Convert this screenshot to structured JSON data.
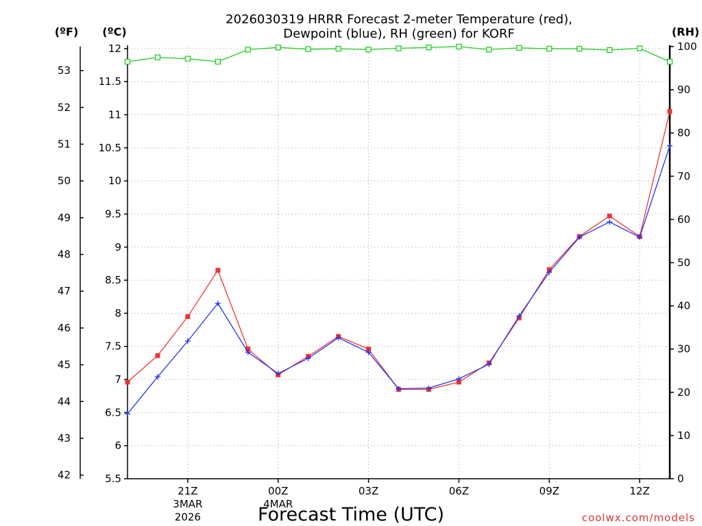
{
  "chart_data": {
    "type": "line",
    "title_line1": "2026030319 HRRR Forecast 2-meter Temperature (red),",
    "title_line2": "Dewpoint (blue), RH (green) for KORF",
    "xlabel": "Forecast Time (UTC)",
    "watermark": "coolwx.com/models",
    "axis_left_f": {
      "unit_label": "(ºF)",
      "ticks": [
        "42",
        "43",
        "44",
        "45",
        "46",
        "47",
        "48",
        "49",
        "50",
        "51",
        "52",
        "53"
      ],
      "values": [
        42,
        43,
        44,
        45,
        46,
        47,
        48,
        49,
        50,
        51,
        52,
        53
      ]
    },
    "axis_left_c": {
      "unit_label": "(ºC)",
      "ticks": [
        "5.5",
        "6",
        "6.5",
        "7",
        "7.5",
        "8",
        "8.5",
        "9",
        "9.5",
        "10",
        "10.5",
        "11",
        "11.5",
        "12"
      ],
      "values": [
        5.5,
        6,
        6.5,
        7,
        7.5,
        8,
        8.5,
        9,
        9.5,
        10,
        10.5,
        11,
        11.5,
        12
      ],
      "ylim": [
        5.5,
        12.03
      ]
    },
    "axis_right_rh": {
      "unit_label": "(RH)",
      "ticks": [
        "0",
        "10",
        "20",
        "30",
        "40",
        "50",
        "60",
        "70",
        "80",
        "90",
        "100"
      ],
      "values": [
        0,
        10,
        20,
        30,
        40,
        50,
        60,
        70,
        80,
        90,
        100
      ],
      "ylim": [
        0,
        100
      ]
    },
    "x_hours": [
      19,
      20,
      21,
      22,
      23,
      24,
      25,
      26,
      27,
      28,
      29,
      30,
      31,
      32,
      33,
      34,
      35,
      36,
      37
    ],
    "x_ticks": [
      {
        "hour": 21,
        "lines": [
          "21Z",
          "3MAR",
          "2026"
        ]
      },
      {
        "hour": 24,
        "lines": [
          "00Z",
          "4MAR"
        ]
      },
      {
        "hour": 27,
        "lines": [
          "03Z"
        ]
      },
      {
        "hour": 30,
        "lines": [
          "06Z"
        ]
      },
      {
        "hour": 33,
        "lines": [
          "09Z"
        ]
      },
      {
        "hour": 36,
        "lines": [
          "12Z"
        ]
      }
    ],
    "grid": true,
    "series": [
      {
        "key": "temperature",
        "color": "#ee3333",
        "marker": "square",
        "axis": "celsius",
        "values": [
          6.96,
          7.36,
          7.95,
          8.65,
          7.46,
          7.07,
          7.35,
          7.65,
          7.46,
          6.85,
          6.85,
          6.96,
          7.25,
          7.93,
          8.66,
          9.16,
          9.47,
          9.16,
          11.05
        ]
      },
      {
        "key": "dewpoint",
        "color": "#2233ee",
        "marker": "plus",
        "axis": "celsius",
        "values": [
          6.48,
          7.04,
          7.58,
          8.15,
          7.41,
          7.09,
          7.32,
          7.63,
          7.41,
          6.86,
          6.87,
          7.01,
          7.23,
          7.96,
          8.62,
          9.15,
          9.38,
          9.15,
          10.53
        ]
      },
      {
        "key": "rh",
        "color": "#22cc22",
        "marker": "open-square",
        "axis": "rh",
        "values": [
          96.5,
          97.5,
          97.2,
          96.5,
          99.3,
          99.8,
          99.4,
          99.5,
          99.3,
          99.6,
          99.8,
          100,
          99.3,
          99.7,
          99.5,
          99.5,
          99.2,
          99.6,
          96.5
        ]
      }
    ]
  }
}
